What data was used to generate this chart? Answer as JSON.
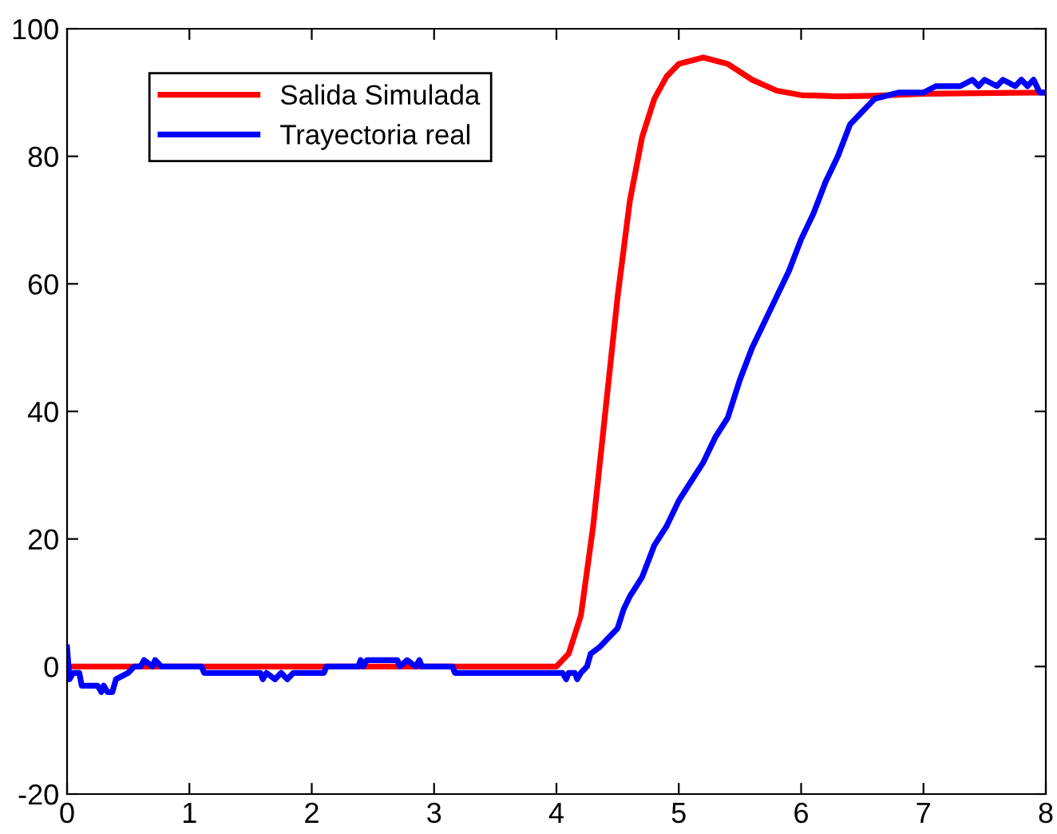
{
  "chart_data": {
    "type": "line",
    "xlim": [
      0,
      8
    ],
    "ylim": [
      -20,
      100
    ],
    "xticks": [
      0,
      1,
      2,
      3,
      4,
      5,
      6,
      7,
      8
    ],
    "yticks": [
      -20,
      0,
      20,
      40,
      60,
      80,
      100
    ],
    "grid": false,
    "legend": "top left",
    "line_style": "solid",
    "marker": "none",
    "series": [
      {
        "name": "Salida Simulada",
        "color": "#ff0000",
        "x": [
          0,
          4.0,
          4.1,
          4.2,
          4.3,
          4.4,
          4.5,
          4.6,
          4.7,
          4.8,
          4.9,
          5.0,
          5.2,
          5.4,
          5.6,
          5.8,
          6.0,
          6.3,
          6.6,
          7.0,
          8.0
        ],
        "values": [
          0,
          0,
          2,
          8,
          22,
          40,
          58,
          73,
          83,
          89,
          92.5,
          94.5,
          95.5,
          94.5,
          92,
          90.3,
          89.6,
          89.4,
          89.5,
          89.8,
          90
        ]
      },
      {
        "name": "Trayectoria real",
        "color": "#0000ff",
        "x": [
          0,
          0.02,
          0.05,
          0.1,
          0.12,
          0.25,
          0.28,
          0.3,
          0.33,
          0.37,
          0.4,
          0.5,
          0.55,
          0.6,
          0.63,
          0.7,
          0.72,
          0.77,
          1.1,
          1.12,
          1.58,
          1.6,
          1.63,
          1.7,
          1.75,
          1.8,
          1.85,
          2.1,
          2.12,
          2.38,
          2.4,
          2.42,
          2.45,
          2.7,
          2.72,
          2.78,
          2.85,
          2.88,
          2.9,
          3.15,
          3.17,
          4.05,
          4.08,
          4.1,
          4.15,
          4.17,
          4.2,
          4.25,
          4.28,
          4.35,
          4.45,
          4.5,
          4.55,
          4.6,
          4.7,
          4.8,
          4.9,
          5.0,
          5.1,
          5.2,
          5.3,
          5.4,
          5.5,
          5.6,
          5.7,
          5.8,
          5.9,
          6.0,
          6.1,
          6.2,
          6.3,
          6.4,
          6.5,
          6.6,
          6.7,
          6.8,
          7.0,
          7.1,
          7.3,
          7.4,
          7.45,
          7.5,
          7.6,
          7.65,
          7.75,
          7.8,
          7.85,
          7.9,
          7.95,
          8.0
        ],
        "values": [
          3,
          -2,
          -1,
          -1,
          -3,
          -3,
          -4,
          -3,
          -4,
          -4,
          -2,
          -1,
          0,
          0,
          1,
          0,
          1,
          0,
          0,
          -1,
          -1,
          -2,
          -1,
          -2,
          -1,
          -2,
          -1,
          -1,
          0,
          0,
          1,
          0,
          1,
          1,
          0,
          1,
          0,
          1,
          0,
          0,
          -1,
          -1,
          -2,
          -1,
          -1,
          -2,
          -1,
          0,
          2,
          3,
          5,
          6,
          9,
          11,
          14,
          19,
          22,
          26,
          29,
          32,
          36,
          39,
          45,
          50,
          54,
          58,
          62,
          67,
          71,
          76,
          80,
          85,
          87,
          89,
          89.5,
          90,
          90,
          91,
          91,
          92,
          91,
          92,
          91,
          92,
          91,
          92,
          91,
          92,
          90,
          90
        ]
      }
    ]
  }
}
